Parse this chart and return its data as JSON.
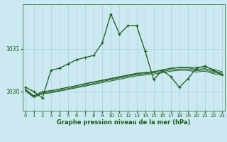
{
  "xlabel": "Graphe pression niveau de la mer (hPa)",
  "bg_color": "#cce8f0",
  "grid_color": "#aad0dc",
  "line_color": "#1a5c1a",
  "x_ticks": [
    0,
    1,
    2,
    3,
    4,
    5,
    6,
    7,
    8,
    9,
    10,
    11,
    12,
    13,
    14,
    15,
    16,
    17,
    18,
    19,
    20,
    21,
    22,
    23
  ],
  "ylim": [
    1029.55,
    1032.05
  ],
  "xlim": [
    -0.3,
    23.3
  ],
  "yticks": [
    1030,
    1031
  ],
  "main_series": [
    1030.1,
    1030.0,
    1029.85,
    1030.5,
    1030.55,
    1030.65,
    1030.75,
    1030.8,
    1030.85,
    1031.15,
    1031.82,
    1031.35,
    1031.55,
    1031.55,
    1030.95,
    1030.28,
    1030.5,
    1030.35,
    1030.1,
    1030.3,
    1030.55,
    1030.6,
    1030.5,
    1030.4
  ],
  "flat_series": [
    [
      1030.05,
      1029.9,
      1030.0,
      1030.02,
      1030.06,
      1030.1,
      1030.14,
      1030.18,
      1030.22,
      1030.26,
      1030.3,
      1030.34,
      1030.38,
      1030.42,
      1030.44,
      1030.46,
      1030.5,
      1030.54,
      1030.56,
      1030.56,
      1030.52,
      1030.54,
      1030.48,
      1030.44
    ],
    [
      1030.05,
      1029.9,
      1030.0,
      1030.02,
      1030.06,
      1030.1,
      1030.14,
      1030.19,
      1030.23,
      1030.27,
      1030.31,
      1030.35,
      1030.39,
      1030.43,
      1030.45,
      1030.47,
      1030.51,
      1030.55,
      1030.57,
      1030.57,
      1030.57,
      1030.58,
      1030.52,
      1030.47
    ],
    [
      1030.04,
      1029.88,
      1029.97,
      1029.99,
      1030.03,
      1030.07,
      1030.11,
      1030.15,
      1030.19,
      1030.24,
      1030.28,
      1030.32,
      1030.36,
      1030.4,
      1030.42,
      1030.44,
      1030.47,
      1030.51,
      1030.53,
      1030.53,
      1030.49,
      1030.51,
      1030.45,
      1030.41
    ],
    [
      1030.02,
      1029.86,
      1029.95,
      1029.97,
      1030.01,
      1030.05,
      1030.09,
      1030.13,
      1030.17,
      1030.21,
      1030.25,
      1030.29,
      1030.33,
      1030.37,
      1030.39,
      1030.41,
      1030.44,
      1030.48,
      1030.5,
      1030.5,
      1030.46,
      1030.48,
      1030.42,
      1030.38
    ]
  ]
}
